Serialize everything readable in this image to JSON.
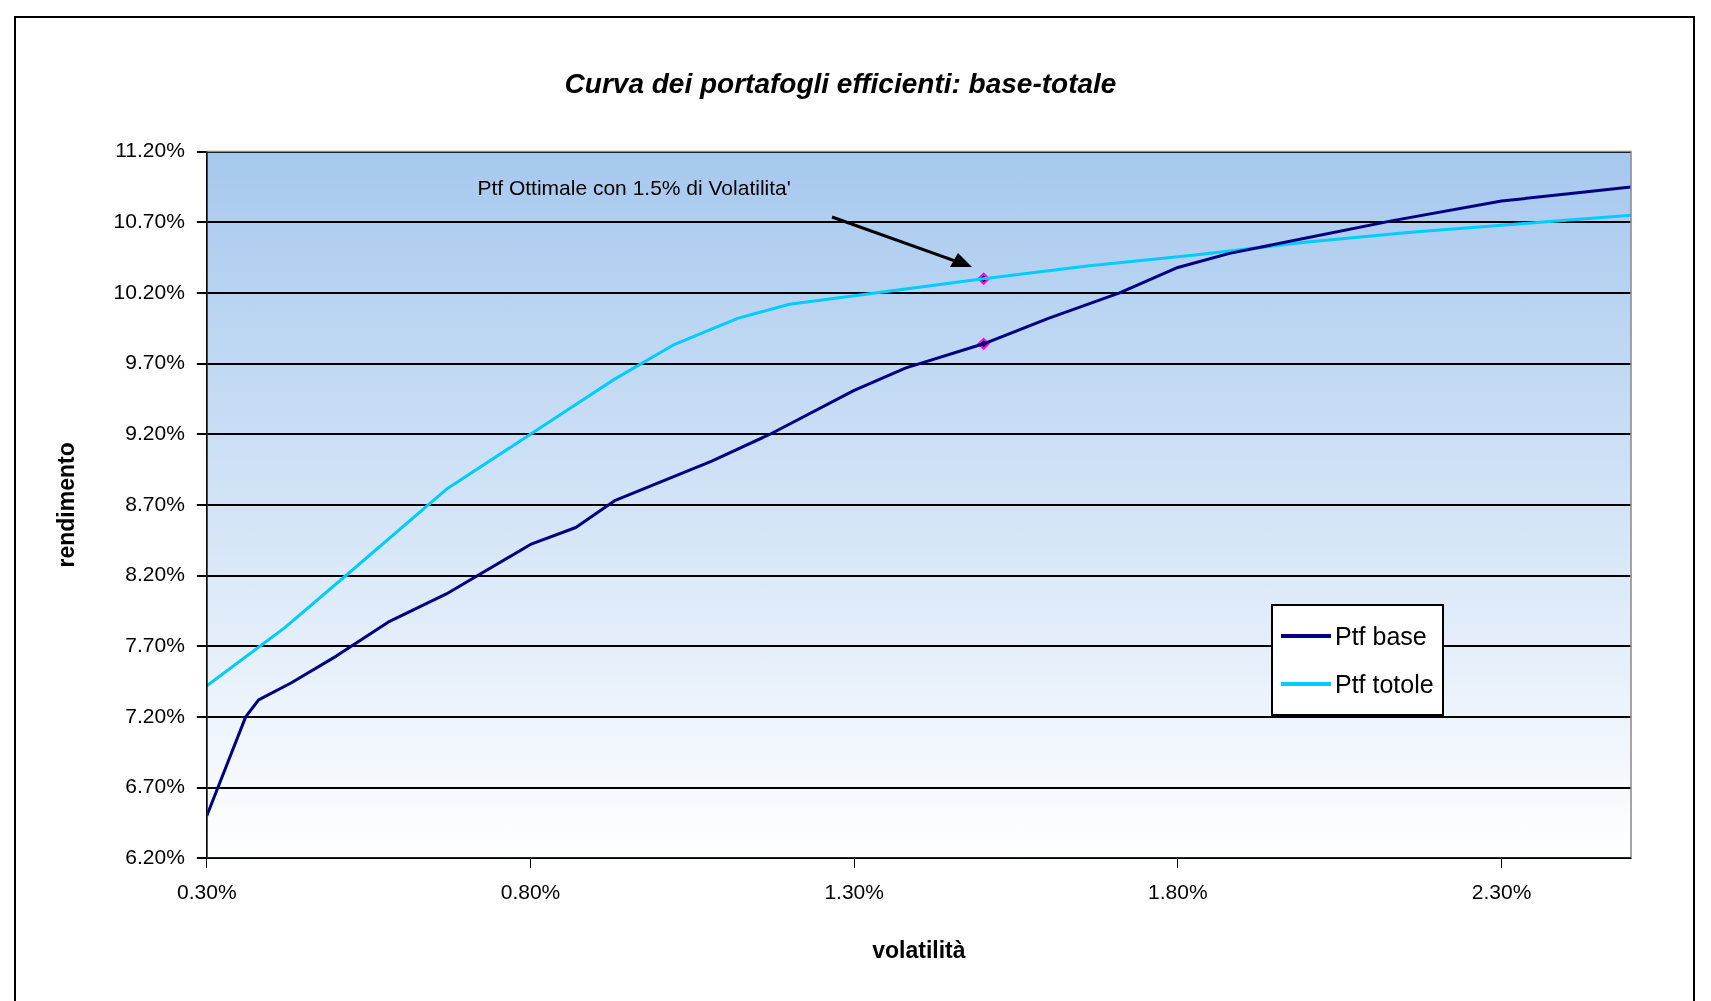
{
  "chart_data": {
    "type": "line",
    "title": "Curva dei portafogli efficienti: base-totale",
    "xlabel": "volatilità",
    "ylabel": "rendimento",
    "annotations": [
      "Ptf Ottimale con 1.5% di Volatilita'"
    ],
    "series": [
      {
        "name": "Ptf base",
        "color": "#000080",
        "x": [
          0.3,
          0.36,
          0.38,
          0.43,
          0.5,
          0.58,
          0.67,
          0.8,
          0.87,
          0.93,
          1.08,
          1.17,
          1.3,
          1.38,
          1.5,
          1.6,
          1.71,
          1.8,
          1.88,
          2.0,
          2.13,
          2.3,
          2.4,
          2.5
        ],
        "values": [
          6.5,
          7.2,
          7.32,
          7.44,
          7.63,
          7.87,
          8.07,
          8.42,
          8.54,
          8.73,
          9.01,
          9.2,
          9.51,
          9.67,
          9.84,
          10.02,
          10.2,
          10.38,
          10.48,
          10.59,
          10.71,
          10.85,
          10.9,
          10.95
        ]
      },
      {
        "name": "Ptf totole",
        "color": "#00ccff",
        "x": [
          0.3,
          0.42,
          0.52,
          0.67,
          0.8,
          0.88,
          0.93,
          1.02,
          1.12,
          1.2,
          1.3,
          1.5,
          1.66,
          1.83,
          2.0,
          2.16,
          2.33,
          2.5
        ],
        "values": [
          7.42,
          7.83,
          8.22,
          8.81,
          9.2,
          9.44,
          9.59,
          9.83,
          10.02,
          10.12,
          10.18,
          10.3,
          10.39,
          10.47,
          10.56,
          10.63,
          10.69,
          10.75
        ]
      },
      {
        "type": "scatter",
        "marker": "diamond",
        "color": "#ff00ff",
        "x": [
          1.5,
          1.5
        ],
        "values": [
          10.3,
          9.84
        ]
      }
    ],
    "xlim": [
      0.3,
      2.5
    ],
    "ylim": [
      6.2,
      11.2
    ],
    "xticks": [
      {
        "value": 0.3,
        "label": "0.30%"
      },
      {
        "value": 0.8,
        "label": "0.80%"
      },
      {
        "value": 1.3,
        "label": "1.30%"
      },
      {
        "value": 1.8,
        "label": "1.80%"
      },
      {
        "value": 2.3,
        "label": "2.30%"
      }
    ],
    "yticks": [
      {
        "value": 6.2,
        "label": "6.20%"
      },
      {
        "value": 6.7,
        "label": "6.70%"
      },
      {
        "value": 7.2,
        "label": "7.20%"
      },
      {
        "value": 7.7,
        "label": "7.70%"
      },
      {
        "value": 8.2,
        "label": "8.20%"
      },
      {
        "value": 8.7,
        "label": "8.70%"
      },
      {
        "value": 9.2,
        "label": "9.20%"
      },
      {
        "value": 9.7,
        "label": "9.70%"
      },
      {
        "value": 10.2,
        "label": "10.20%"
      },
      {
        "value": 10.7,
        "label": "10.70%"
      },
      {
        "value": 11.2,
        "label": "11.20%"
      }
    ],
    "grid": "y",
    "legend": "right",
    "line_style": "solid"
  }
}
